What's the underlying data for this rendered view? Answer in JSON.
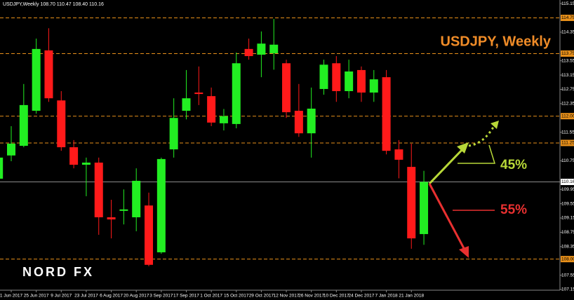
{
  "chart_data": {
    "type": "candlestick",
    "title": "USDJPY, Weekly",
    "header": "USDJPY,Weekly 108.70 110.47 108.40 110.16",
    "logo": "NORD FX",
    "annotations": [
      "45%",
      "55%"
    ],
    "categories": [
      null,
      "1 Jun 2017",
      null,
      "25 Jun 2017",
      null,
      "9 Jul 2017",
      null,
      "23 Jul 2017",
      null,
      "6 Aug 2017",
      null,
      "20 Aug 2017",
      null,
      "3 Sep 2017",
      null,
      "17 Sep 2017",
      null,
      "1 Oct 2017",
      null,
      "15 Oct 2017",
      null,
      "29 Oct 2017",
      null,
      "12 Nov 2017",
      null,
      "26 Nov 2017",
      null,
      "10 Dec 2017",
      null,
      "24 Dec 2017",
      null,
      "7 Jan 2018",
      null,
      "21 Jan 2018",
      null
    ],
    "open": [
      110.25,
      110.9,
      111.17,
      112.15,
      113.84,
      112.44,
      111.13,
      110.64,
      110.7,
      109.17,
      109.35,
      109.17,
      109.5,
      108.19,
      111.07,
      112.15,
      112.66,
      112.56,
      111.8,
      111.78,
      113.88,
      113.72,
      113.76,
      113.48,
      112.15,
      111.52,
      112.76,
      113.48,
      112.7,
      113.29,
      112.66,
      113.09,
      111.07,
      110.58,
      108.7
    ],
    "high": [
      111.0,
      111.72,
      112.9,
      114.17,
      114.46,
      112.7,
      111.33,
      110.84,
      110.84,
      109.66,
      109.95,
      110.54,
      109.86,
      110.84,
      112.5,
      113.29,
      113.39,
      112.8,
      112.2,
      113.78,
      114.17,
      114.37,
      114.72,
      113.58,
      112.9,
      112.8,
      113.58,
      113.68,
      113.58,
      113.39,
      113.29,
      113.29,
      111.33,
      111.23,
      110.47
    ],
    "low": [
      110.1,
      110.74,
      111.13,
      112.07,
      112.4,
      111.03,
      110.54,
      109.76,
      108.68,
      108.58,
      108.97,
      108.78,
      107.8,
      108.15,
      110.84,
      111.91,
      112.31,
      111.72,
      111.6,
      111.66,
      113.58,
      113.09,
      113.3,
      111.95,
      111.42,
      110.84,
      112.6,
      112.4,
      112.5,
      112.4,
      112.4,
      110.93,
      110.26,
      108.29,
      108.4
    ],
    "close": [
      110.84,
      111.23,
      112.31,
      113.88,
      112.5,
      111.13,
      110.64,
      110.7,
      109.17,
      109.11,
      109.39,
      110.19,
      107.84,
      110.8,
      111.95,
      112.5,
      112.62,
      111.82,
      112.0,
      113.48,
      113.68,
      114.03,
      114.0,
      112.11,
      111.52,
      112.21,
      113.44,
      112.7,
      113.25,
      112.66,
      113.03,
      111.03,
      110.78,
      108.58,
      110.16
    ],
    "up_color": "#22ee22",
    "down_color": "#ff1a1a",
    "ylim": [
      107.13,
      115.25
    ],
    "yticks": [
      115.15,
      114.35,
      113.55,
      113.15,
      112.75,
      112.35,
      111.55,
      110.75,
      109.95,
      109.55,
      109.15,
      108.75,
      108.35,
      107.55,
      107.15
    ],
    "levels": [
      114.75,
      113.75,
      {
        "value": 112.0,
        "label": "112.00"
      },
      111.25,
      {
        "value": 108.0,
        "label": "108.00"
      }
    ],
    "level_color": "#e8901a",
    "current_price": 110.16
  }
}
